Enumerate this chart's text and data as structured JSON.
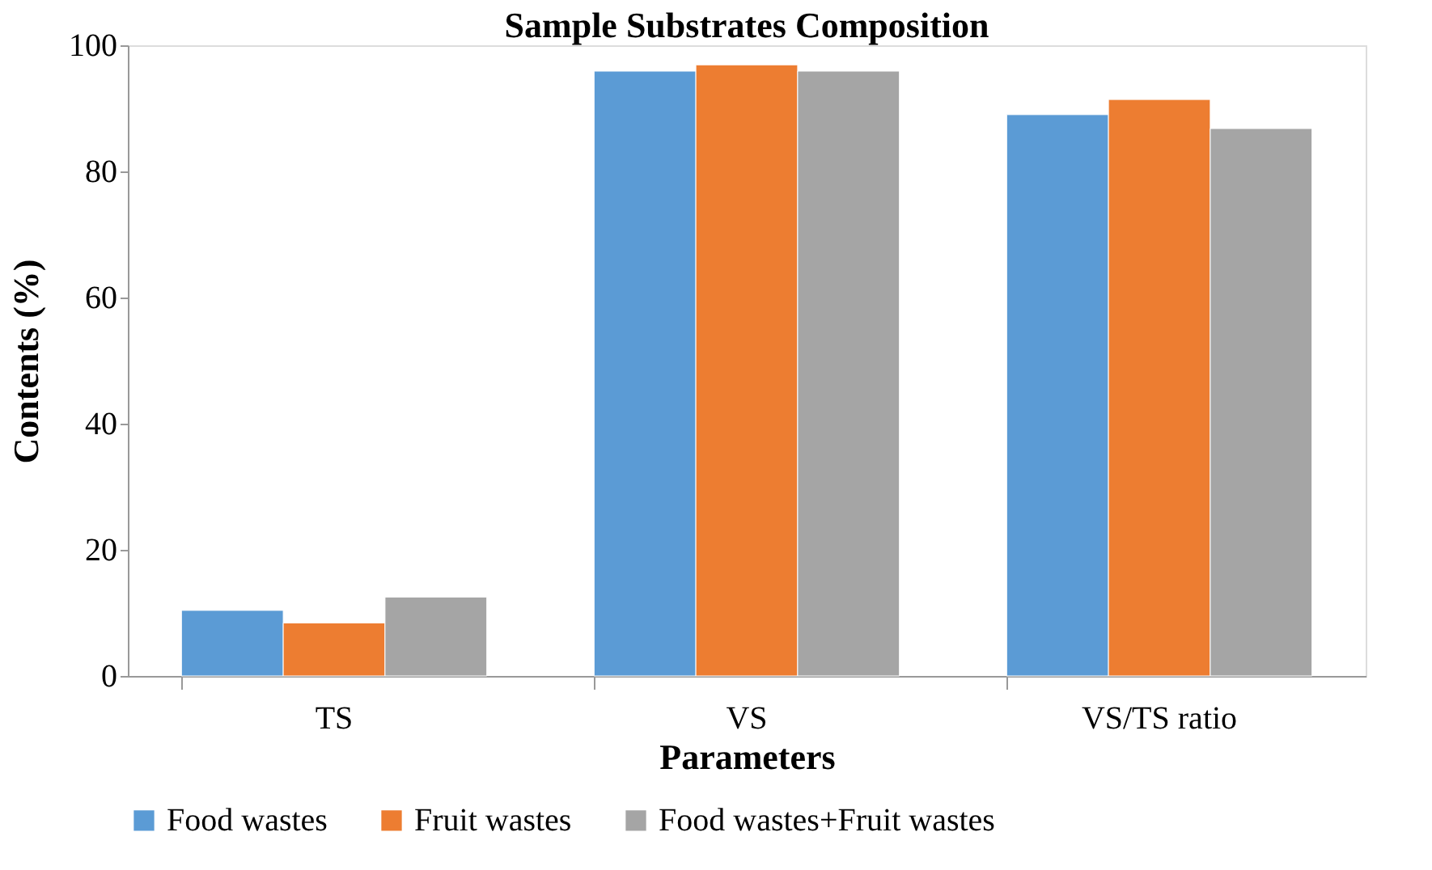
{
  "chart_data": {
    "type": "bar",
    "title": "Sample Substrates Composition",
    "xlabel": "Parameters",
    "ylabel": "Contents (%)",
    "categories": [
      "TS",
      "VS",
      "VS/TS ratio"
    ],
    "series": [
      {
        "name": "Food wastes",
        "color": "#5b9bd5",
        "values": [
          10.4,
          95.9,
          89.0
        ]
      },
      {
        "name": "Fruit wastes",
        "color": "#ed7d31",
        "values": [
          8.4,
          96.9,
          91.4
        ]
      },
      {
        "name": "Food wastes+Fruit wastes",
        "color": "#a5a5a5",
        "values": [
          12.5,
          95.9,
          86.8
        ]
      }
    ],
    "ylim": [
      0,
      100
    ],
    "yticks": [
      0,
      20,
      40,
      60,
      80,
      100
    ],
    "grid": false,
    "legend": "bottom"
  }
}
